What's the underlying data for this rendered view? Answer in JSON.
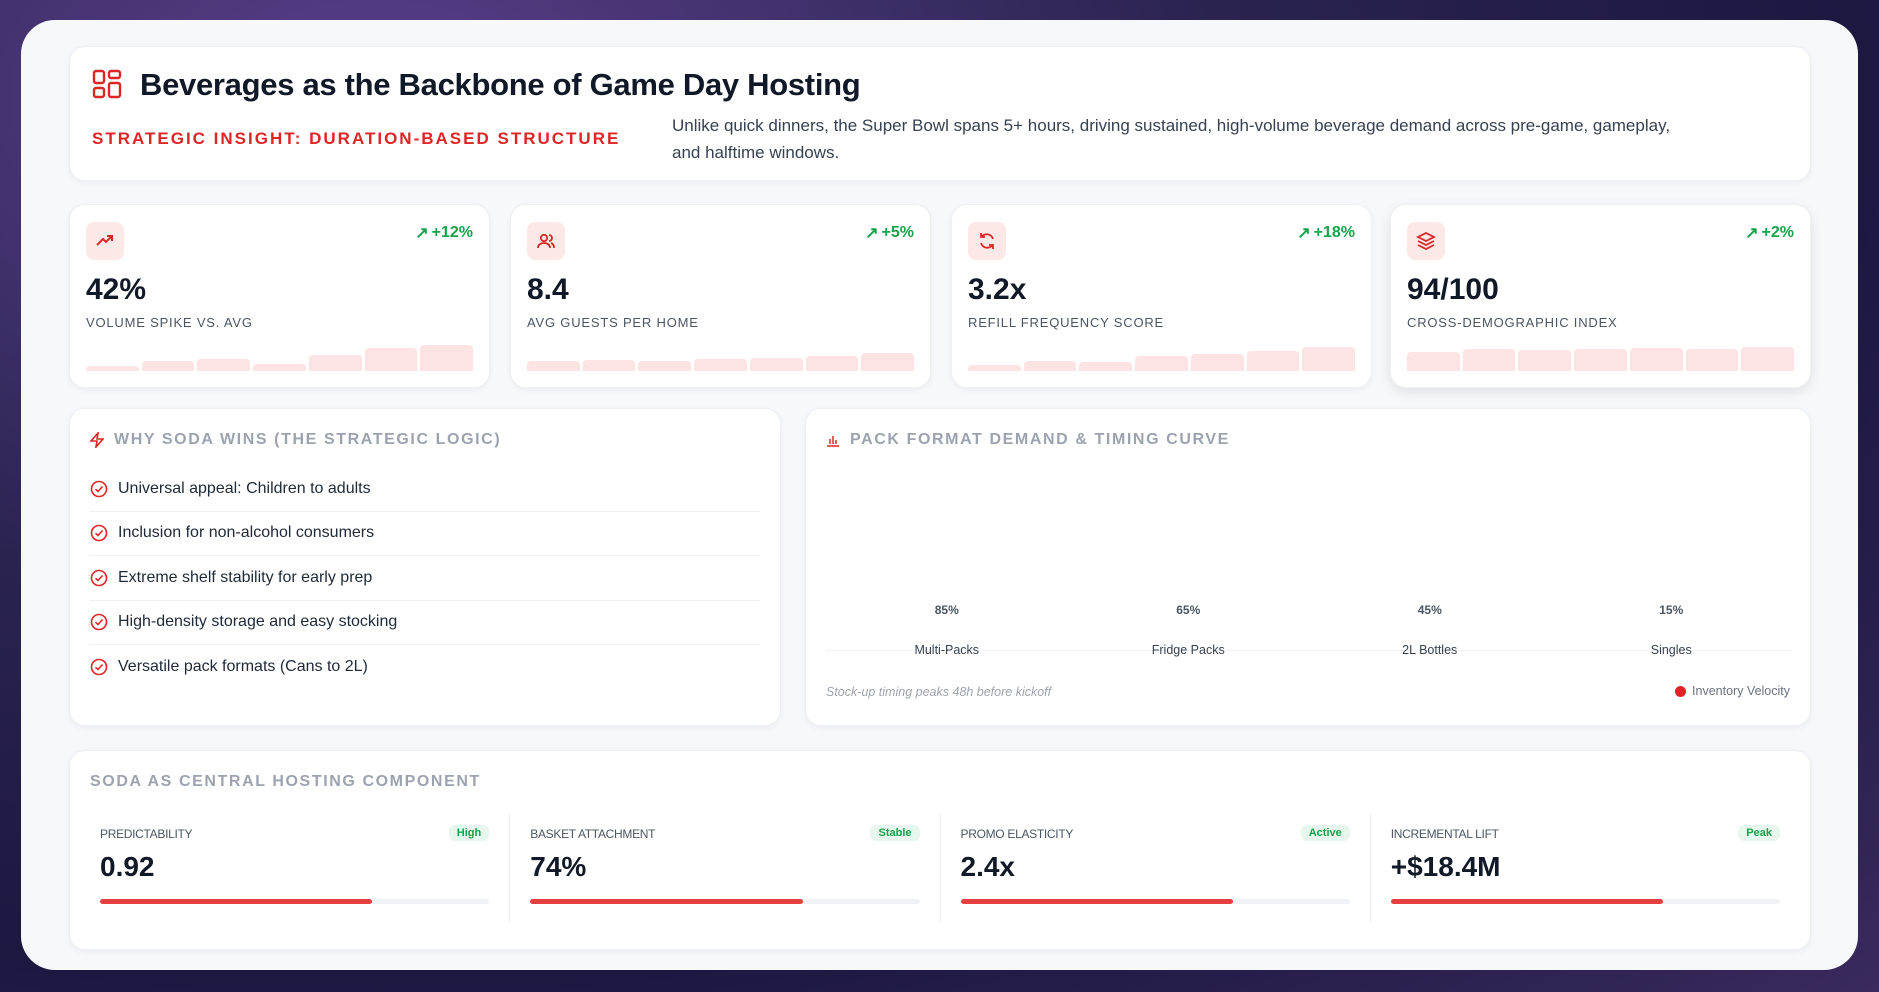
{
  "header": {
    "title": "Beverages as the Backbone of Game Day Hosting",
    "kicker": "STRATEGIC INSIGHT: DURATION-BASED STRUCTURE",
    "description": "Unlike quick dinners, the Super Bowl spans 5+ hours, driving sustained, high-volume beverage demand across pre-game, gameplay, and halftime windows.",
    "icon": "layout-grid-icon"
  },
  "kpis": [
    {
      "icon": "trending-up-icon",
      "delta": "+12%",
      "value": "42%",
      "label": "VOLUME SPIKE VS. AVG",
      "spark": [
        0.15,
        0.3,
        0.38,
        0.22,
        0.5,
        0.72,
        0.8
      ]
    },
    {
      "icon": "users-icon",
      "delta": "+5%",
      "value": "8.4",
      "label": "AVG GUESTS PER HOME",
      "spark": [
        0.3,
        0.35,
        0.32,
        0.38,
        0.4,
        0.48,
        0.55
      ]
    },
    {
      "icon": "refresh-icon",
      "delta": "+18%",
      "value": "3.2x",
      "label": "REFILL FREQUENCY SCORE",
      "spark": [
        0.2,
        0.3,
        0.28,
        0.48,
        0.52,
        0.62,
        0.75
      ]
    },
    {
      "icon": "layers-icon",
      "delta": "+2%",
      "value": "94/100",
      "label": "CROSS-DEMOGRAPHIC INDEX",
      "spark": [
        0.6,
        0.68,
        0.65,
        0.68,
        0.72,
        0.7,
        0.75
      ]
    }
  ],
  "why": {
    "title": "WHY SODA WINS (THE STRATEGIC LOGIC)",
    "items": [
      "Universal appeal: Children to adults",
      "Inclusion for non-alcohol consumers",
      "Extreme shelf stability for early prep",
      "High-density storage and easy stocking",
      "Versatile pack formats (Cans to 2L)"
    ]
  },
  "pack": {
    "title": "PACK FORMAT DEMAND & TIMING CURVE",
    "note": "Stock-up timing peaks 48h before kickoff",
    "legend": "Inventory Velocity"
  },
  "chart_data": {
    "type": "bar",
    "categories": [
      "Multi-Packs",
      "Fridge Packs",
      "2L Bottles",
      "Singles"
    ],
    "values": [
      85,
      65,
      45,
      15
    ],
    "labels": [
      "85%",
      "65%",
      "45%",
      "15%"
    ],
    "title": "PACK FORMAT DEMAND & TIMING CURVE",
    "ylim": [
      0,
      100
    ],
    "legend": "Inventory Velocity",
    "legend_position": "bottom-right",
    "grid": false,
    "color": "#dc2626"
  },
  "central": {
    "title": "SODA AS CENTRAL HOSTING COMPONENT",
    "metrics": [
      {
        "label": "PREDICTABILITY",
        "badge": "High",
        "value": "0.92",
        "progress": 0.7
      },
      {
        "label": "BASKET ATTACHMENT",
        "badge": "Stable",
        "value": "74%",
        "progress": 0.7
      },
      {
        "label": "PROMO ELASTICITY",
        "badge": "Active",
        "value": "2.4x",
        "progress": 0.7
      },
      {
        "label": "INCREMENTAL LIFT",
        "badge": "Peak",
        "value": "+$18.4M",
        "progress": 0.7
      }
    ]
  },
  "colors": {
    "accent": "#dc2626",
    "positive": "#16a34a",
    "bar": "#e5403f"
  }
}
